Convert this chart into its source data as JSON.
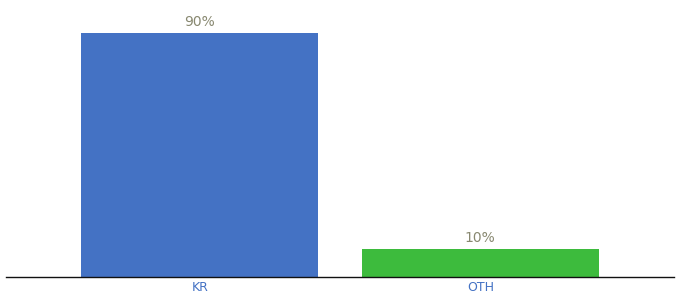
{
  "categories": [
    "KR",
    "OTH"
  ],
  "values": [
    90,
    10
  ],
  "bar_colors": [
    "#4472c4",
    "#3dbb3d"
  ],
  "bar_labels": [
    "90%",
    "10%"
  ],
  "background_color": "#ffffff",
  "label_fontsize": 10,
  "tick_fontsize": 9,
  "ylim": [
    0,
    100
  ],
  "bar_width": 0.55,
  "x_positions": [
    0.35,
    1.0
  ],
  "xlim": [
    -0.1,
    1.45
  ],
  "label_color": "#888870",
  "tick_color": "#4472c4"
}
